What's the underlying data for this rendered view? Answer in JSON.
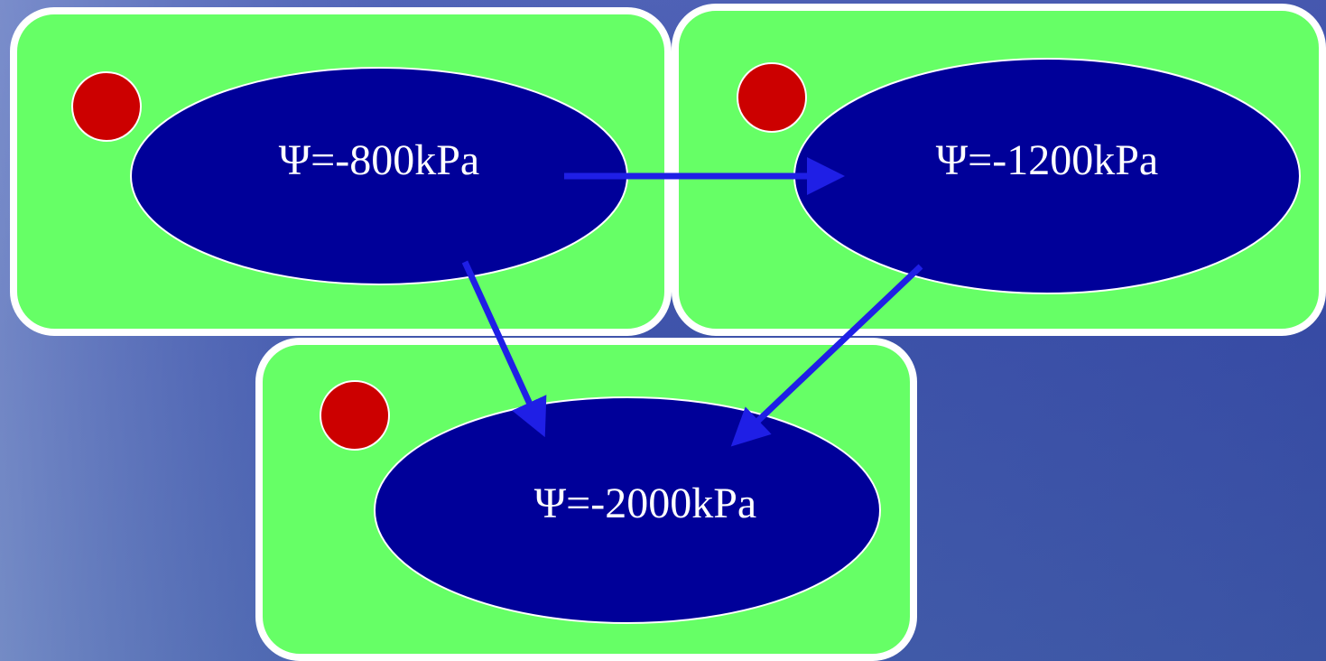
{
  "nodes": [
    {
      "label": "Ψ=-800kPa"
    },
    {
      "label": "Ψ=-1200kPa"
    },
    {
      "label": "Ψ=-2000kPa"
    }
  ]
}
